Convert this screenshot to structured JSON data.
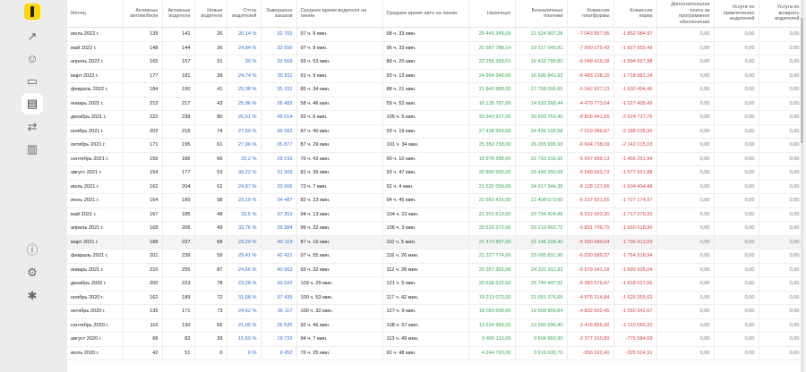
{
  "sidebar": {
    "items": [
      {
        "name": "chart-line-icon",
        "glyph": "↗"
      },
      {
        "name": "user-icon",
        "glyph": "☺"
      },
      {
        "name": "car-icon",
        "glyph": "▭"
      },
      {
        "name": "report-icon",
        "glyph": "▤"
      },
      {
        "name": "swap-icon",
        "glyph": "⇄"
      },
      {
        "name": "book-icon",
        "glyph": "▥"
      },
      {
        "name": "info-icon",
        "glyph": "ⓘ"
      },
      {
        "name": "settings-icon",
        "glyph": "⚙"
      },
      {
        "name": "bug-icon",
        "glyph": "✱"
      }
    ]
  },
  "table": {
    "headers": [
      "Месяц",
      "Активные автомобили",
      "Активные водители",
      "Новые водители",
      "Отток водителей",
      "Завершено заказов",
      "Среднее время водителя на линии",
      "Среднее время авто на линии",
      "Наличные",
      "Безналичные платежи",
      "Комиссия платформы",
      "Комиссия парка",
      "Дополнительная плата за программное обеспечение",
      "Услуги по привлечению водителей",
      "Услуга по возврату водителей"
    ],
    "rows": [
      [
        "июль 2022 г.",
        "139",
        "141",
        "26",
        "20,14 %",
        "32 702",
        "97 ч. 9 мин.",
        "98 ч. 33 мин.",
        "25 445 349,09",
        "21 524 907,28",
        "-7 043 857,95",
        "-1 852 084,97",
        "0,00",
        "0,00",
        "0,00"
      ],
      [
        "май 2022 г.",
        "148",
        "144",
        "26",
        "24,84 %",
        "33 056",
        "97 ч. 9 мин.",
        "96 ч. 33 мин.",
        "25 587 788,14",
        "19 517 049,81",
        "-7 090 079,43",
        "-1 827 655,49",
        "0,00",
        "0,00",
        "0,00"
      ],
      [
        "апрель 2022 г.",
        "165",
        "157",
        "31",
        "30 %",
        "33 569",
        "93 ч. 53 мин.",
        "89 ч. 20 мин.",
        "22 256 309,01",
        "16 419 799,80",
        "-6 048 419,28",
        "-1 594 597,98",
        "0,00",
        "0,00",
        "0,00"
      ],
      [
        "март 2022 г.",
        "177",
        "181",
        "38",
        "24,74 %",
        "35 811",
        "91 ч. 9 мин.",
        "93 ч. 13 мин.",
        "24 954 340,00",
        "16 696 841,93",
        "-6 483 238,16",
        "-1 718 881,24",
        "0,00",
        "0,00",
        "0,00"
      ],
      [
        "февраль 2022 г.",
        "184",
        "190",
        "41",
        "29,38 %",
        "35 332",
        "85 ч. 34 мин.",
        "88 ч. 21 мин.",
        "21 840 888,00",
        "17 758 006,65",
        "-6 042 927,13",
        "-1 630 494,46",
        "0,00",
        "0,00",
        "0,00"
      ],
      [
        "январь 2022 г.",
        "213",
        "217",
        "43",
        "25,96 %",
        "28 483",
        "58 ч. 46 мин.",
        "59 ч. 52 мин.",
        "16 135 787,00",
        "14 532 268,44",
        "-4 479 773,04",
        "-1 227 405,49",
        "0,00",
        "0,00",
        "0,00"
      ],
      [
        "декабрь 2021 г.",
        "222",
        "238",
        "80",
        "26,51 %",
        "48 614",
        "93 ч. 6 мин.",
        "105 ч. 5 мин.",
        "32 343 917,00",
        "30 603 763,40",
        "-8 826 941,65",
        "-2 624 717,76",
        "0,00",
        "0,00",
        "0,00"
      ],
      [
        "ноябрь 2021 г.",
        "202",
        "215",
        "74",
        "27,69 %",
        "39 083",
        "87 ч. 40 мин.",
        "93 ч. 19 мин.",
        "27 438 959,00",
        "24 435 109,58",
        "-7 019 086,87",
        "-2 188 635,35",
        "0,00",
        "0,00",
        "0,00"
      ],
      [
        "октябрь 2021 г.",
        "171",
        "195",
        "61",
        "27,96 %",
        "35 877",
        "87 ч. 29 мин.",
        "101 ч. 34 мин.",
        "25 350 758,00",
        "26 265 995,93",
        "-6 604 738,09",
        "-2 142 015,03",
        "0,00",
        "0,00",
        "0,00"
      ],
      [
        "сентябрь 2021 г.",
        "156",
        "186",
        "66",
        "32,2 %",
        "29 193",
        "76 ч. 42 мин.",
        "90 ч. 10 мин.",
        "18 978 288,00",
        "22 793 316,92",
        "-5 097 959,13",
        "-1 466 251,94",
        "0,00",
        "0,00",
        "0,00"
      ],
      [
        "август 2021 г.",
        "154",
        "177",
        "53",
        "39,22 %",
        "31 909",
        "81 ч. 36 мин.",
        "93 ч. 47 мин.",
        "20 800 655,00",
        "26 430 350,69",
        "-5 548 663,73",
        "-1 577 931,88",
        "0,00",
        "0,00",
        "0,00"
      ],
      [
        "июль 2021 г.",
        "162",
        "204",
        "62",
        "24,87 %",
        "33 906",
        "73 ч. 7 мин.",
        "92 ч. 4 мин.",
        "21 532 058,00",
        "34 917 344,35",
        "-6 128 127,06",
        "-1 634 404,48",
        "0,00",
        "0,00",
        "0,00"
      ],
      [
        "июнь 2021 г.",
        "164",
        "189",
        "58",
        "29,19 %",
        "34 487",
        "82 ч. 23 мин.",
        "94 ч. 45 мин.",
        "22 660 416,00",
        "22 408 073,60",
        "-6 237 621,95",
        "-1 727 174,97",
        "0,00",
        "0,00",
        "0,00"
      ],
      [
        "май 2021 г.",
        "167",
        "185",
        "48",
        "33,5 %",
        "37 353",
        "94 ч. 13 мин.",
        "104 ч. 22 мин.",
        "21 201 613,00",
        "20 794 424,86",
        "-5 912 003,30",
        "-1 717 070,32",
        "0,00",
        "0,00",
        "0,00"
      ],
      [
        "апрель 2021 г.",
        "168",
        "206",
        "49",
        "33,76 %",
        "39 384",
        "96 ч. 32 мин.",
        "106 ч. 3 мин.",
        "20 520 372,00",
        "20 210 902,72",
        "-5 831 709,70",
        "-1 650 518,90",
        "0,00",
        "0,00",
        "0,00"
      ],
      [
        "март 2021 г.",
        "188",
        "237",
        "68",
        "29,29 %",
        "40 113",
        "87 ч. 19 мин.",
        "110 ч. 5 мин.",
        "21 473 897,00",
        "21 146 229,40",
        "-5 990 089,04",
        "-1 735 413,09",
        "0,00",
        "0,00",
        "0,00"
      ],
      [
        "февраль 2021 г.",
        "201",
        "239",
        "59",
        "29,41 %",
        "42 421",
        "97 ч. 55 мин.",
        "116 ч. 26 мин.",
        "21 327 774,00",
        "23 005 831,90",
        "-6 030 589,37",
        "-1 764 518,94",
        "0,00",
        "0,00",
        "0,00"
      ],
      [
        "январь 2021 г.",
        "210",
        "255",
        "87",
        "24,66 %",
        "40 963",
        "93 ч. 32 мин.",
        "112 ч. 28 мин.",
        "20 357 302,00",
        "24 221 911,93",
        "-5 979 341,18",
        "-1 699 935,04",
        "0,00",
        "0,00",
        "0,00"
      ],
      [
        "декабрь 2020 г.",
        "200",
        "223",
        "78",
        "23,28 %",
        "39 020",
        "103 ч. 29 мин.",
        "121 ч. 5 мин.",
        "20 639 522,00",
        "25 740 447,92",
        "-5 383 579,47",
        "-1 818 027,05",
        "0,00",
        "0,00",
        "0,00"
      ],
      [
        "ноябрь 2020 г.",
        "162",
        "189",
        "72",
        "31,58 %",
        "37 435",
        "100 ч. 53 мин.",
        "117 ч. 42 мин.",
        "19 213 073,00",
        "21 091 376,65",
        "-4 976 314,84",
        "-1 626 355,62",
        "0,00",
        "0,00",
        "0,00"
      ],
      [
        "октябрь 2020 г.",
        "135",
        "171",
        "73",
        "24,62 %",
        "36 117",
        "100 ч. 32 мин.",
        "127 ч. 9 мин.",
        "18 093 508,00",
        "19 509 959,84",
        "-4 802 502,45",
        "-1 550 342,67",
        "0,00",
        "0,00",
        "0,00"
      ],
      [
        "сентябрь 2020 г.",
        "116",
        "130",
        "66",
        "21,95 %",
        "26 535",
        "92 ч. 46 мин.",
        "108 ч. 57 мин.",
        "13 524 969,00",
        "13 556 996,40",
        "-3 416 856,42",
        "-1 110 692,20",
        "0,00",
        "0,00",
        "0,00"
      ],
      [
        "август 2020 г.",
        "68",
        "82",
        "39",
        "15,69 %",
        "19 733",
        "94 ч. 7 мин.",
        "113 ч. 49 мин.",
        "9 499 110,00",
        "9 504 993,90",
        "-2 377 310,89",
        "-775 584,69",
        "0,00",
        "0,00",
        "0,00"
      ],
      [
        "июль 2020 г.",
        "42",
        "51",
        "0",
        "0 %",
        "9 452",
        "76 ч. 25 мин.",
        "92 ч. 48 мин.",
        "4 244 760,00",
        "3 619 635,70",
        "-956 522,40",
        "-325 924,31",
        "0,00",
        "0,00",
        "0,00"
      ]
    ],
    "highlighted_row": "март 2021 г."
  },
  "colors": {
    "percent": "#2f6fd6",
    "cash": "#2fa84a",
    "commission": "#e03c3c",
    "accent_logo": "#ffd600"
  }
}
